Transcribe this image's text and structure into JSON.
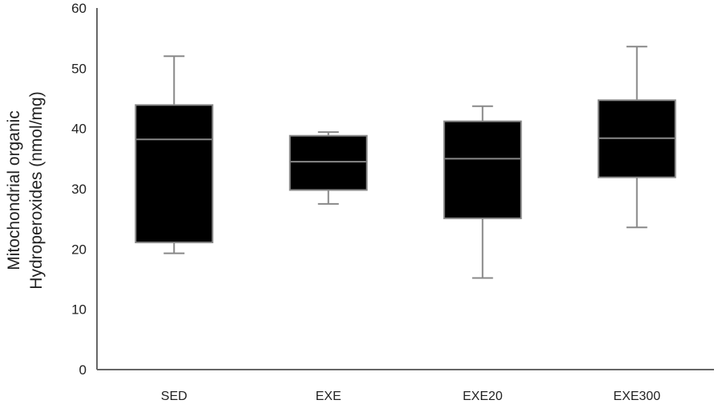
{
  "chart_data": {
    "type": "box",
    "ylabel_line1": "Mitochondrial organic",
    "ylabel_line2": "Hydroperoxides (nmol/mg)",
    "ylim": [
      0,
      60
    ],
    "yticks": [
      0,
      10,
      20,
      30,
      40,
      50,
      60
    ],
    "categories": [
      "SED",
      "EXE",
      "EXE20",
      "EXE300"
    ],
    "boxes": [
      {
        "category": "SED",
        "min": 19.3,
        "q1": 21.1,
        "median": 38.2,
        "q3": 43.9,
        "max": 52.0
      },
      {
        "category": "EXE",
        "min": 27.5,
        "q1": 29.8,
        "median": 34.5,
        "q3": 38.8,
        "max": 39.4
      },
      {
        "category": "EXE20",
        "min": 15.2,
        "q1": 25.1,
        "median": 35.0,
        "q3": 41.2,
        "max": 43.7
      },
      {
        "category": "EXE300",
        "min": 23.6,
        "q1": 31.9,
        "median": 38.4,
        "q3": 44.7,
        "max": 53.6
      }
    ],
    "colors": {
      "box_fill": "#000000",
      "box_edge": "#888888",
      "axis": "#666666",
      "text": "#222222"
    },
    "grid": false,
    "legend": "none"
  }
}
